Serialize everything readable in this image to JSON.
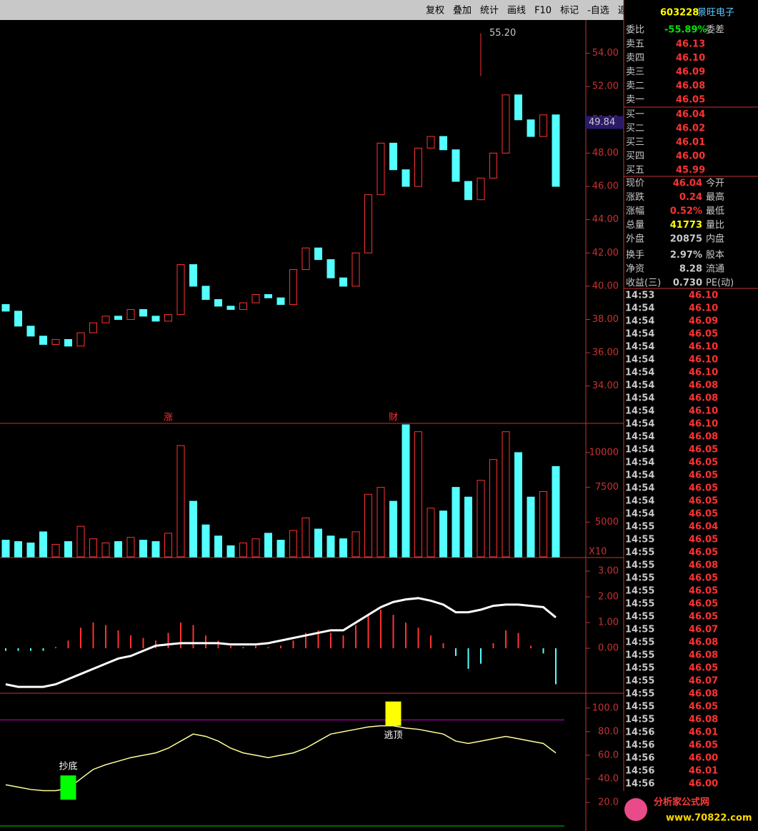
{
  "ui": {
    "toolbar": [
      "复权",
      "叠加",
      "统计",
      "画线",
      "F10",
      "标记",
      "-自选",
      "返回"
    ],
    "code": "603228",
    "name": "景旺电子",
    "weibi": {
      "label": "委比",
      "value": "-55.89%",
      "label2": "委差"
    },
    "book": [
      [
        "卖五",
        "46.13"
      ],
      [
        "卖四",
        "46.10"
      ],
      [
        "卖三",
        "46.09"
      ],
      [
        "卖二",
        "46.08"
      ],
      [
        "卖一",
        "46.05"
      ],
      [
        "买一",
        "46.04"
      ],
      [
        "买二",
        "46.02"
      ],
      [
        "买三",
        "46.01"
      ],
      [
        "买四",
        "46.00"
      ],
      [
        "买五",
        "45.99"
      ]
    ],
    "quote": [
      [
        "现价",
        "46.04",
        "今开"
      ],
      [
        "涨跌",
        "0.24",
        "最高"
      ],
      [
        "涨幅",
        "0.52%",
        "最低"
      ],
      [
        "总量",
        "41773",
        "量比"
      ],
      [
        "外盘",
        "20875",
        "内盘"
      ],
      [
        "换手",
        "2.97%",
        "股本"
      ],
      [
        "净资",
        "8.28",
        "流通"
      ],
      [
        "收益(三)",
        "0.730",
        "PE(动)"
      ]
    ],
    "trades": [
      [
        "14:53",
        "46.10"
      ],
      [
        "14:54",
        "46.10"
      ],
      [
        "14:54",
        "46.09"
      ],
      [
        "14:54",
        "46.05"
      ],
      [
        "14:54",
        "46.10"
      ],
      [
        "14:54",
        "46.10"
      ],
      [
        "14:54",
        "46.10"
      ],
      [
        "14:54",
        "46.08"
      ],
      [
        "14:54",
        "46.08"
      ],
      [
        "14:54",
        "46.10"
      ],
      [
        "14:54",
        "46.10"
      ],
      [
        "14:54",
        "46.08"
      ],
      [
        "14:54",
        "46.05"
      ],
      [
        "14:54",
        "46.05"
      ],
      [
        "14:54",
        "46.05"
      ],
      [
        "14:54",
        "46.05"
      ],
      [
        "14:54",
        "46.05"
      ],
      [
        "14:54",
        "46.05"
      ],
      [
        "14:55",
        "46.04"
      ],
      [
        "14:55",
        "46.05"
      ],
      [
        "14:55",
        "46.05"
      ],
      [
        "14:55",
        "46.08"
      ],
      [
        "14:55",
        "46.05"
      ],
      [
        "14:55",
        "46.05"
      ],
      [
        "14:55",
        "46.05"
      ],
      [
        "14:55",
        "46.05"
      ],
      [
        "14:55",
        "46.07"
      ],
      [
        "14:55",
        "46.08"
      ],
      [
        "14:55",
        "46.08"
      ],
      [
        "14:55",
        "46.05"
      ],
      [
        "14:55",
        "46.07"
      ],
      [
        "14:55",
        "46.08"
      ],
      [
        "14:55",
        "46.05"
      ],
      [
        "14:55",
        "46.08"
      ],
      [
        "14:56",
        "46.01"
      ],
      [
        "14:56",
        "46.05"
      ],
      [
        "14:56",
        "46.00"
      ],
      [
        "14:56",
        "46.01"
      ],
      [
        "14:56",
        "46.00"
      ]
    ],
    "watermark": "分析家公式网",
    "watermark_url": "www.70822.com"
  },
  "chart_data": [
    {
      "type": "candlestick",
      "open": [
        38.9,
        38.5,
        37.6,
        37.0,
        36.5,
        36.8,
        36.4,
        37.2,
        37.8,
        38.2,
        38.0,
        38.6,
        38.2,
        37.9,
        38.3,
        41.3,
        40.0,
        39.2,
        38.8,
        38.6,
        39.0,
        39.5,
        39.3,
        38.9,
        41.0,
        42.3,
        41.6,
        40.5,
        40.0,
        42.0,
        45.5,
        48.6,
        47.0,
        46.0,
        48.3,
        49.0,
        48.2,
        46.3,
        45.2,
        46.5,
        48.0,
        51.5,
        50.0,
        49.0,
        50.3
      ],
      "close": [
        38.5,
        37.6,
        37.0,
        36.5,
        36.8,
        36.4,
        37.2,
        37.8,
        38.2,
        38.0,
        38.6,
        38.2,
        37.9,
        38.3,
        41.3,
        40.0,
        39.2,
        38.8,
        38.6,
        39.0,
        39.5,
        39.3,
        38.9,
        41.0,
        42.3,
        41.6,
        40.5,
        40.0,
        42.0,
        45.5,
        48.6,
        47.0,
        46.0,
        48.3,
        49.0,
        48.2,
        46.3,
        45.2,
        46.5,
        48.0,
        51.5,
        50.0,
        49.0,
        50.3,
        46.0
      ],
      "ylim": [
        31.8,
        56.0
      ],
      "yticks": [
        {
          "value": 34,
          "label": "34.00"
        },
        {
          "value": 36,
          "label": "36.00"
        },
        {
          "value": 38,
          "label": "38.00"
        },
        {
          "value": 40,
          "label": "40.00"
        },
        {
          "value": 42,
          "label": "42.00"
        },
        {
          "value": 44,
          "label": "44.00"
        },
        {
          "value": 46,
          "label": "46.00"
        },
        {
          "value": 48,
          "label": "48.00"
        },
        {
          "value": 50,
          "label": "50.00"
        },
        {
          "value": 52,
          "label": "52.00"
        },
        {
          "value": 54,
          "label": "54.00"
        }
      ],
      "peak": {
        "value": 55.2,
        "label": "55.20",
        "index": 38
      },
      "cursor": {
        "value": 49.84,
        "label": "49.84"
      },
      "events": [
        {
          "text": "涨",
          "index": 13
        },
        {
          "text": "财",
          "index": 31
        }
      ]
    },
    {
      "type": "bar",
      "values": [
        3700,
        3600,
        3500,
        4300,
        3400,
        3600,
        4700,
        3800,
        3500,
        3600,
        3900,
        3700,
        3600,
        4200,
        10500,
        6500,
        4800,
        4000,
        3300,
        3500,
        3800,
        4200,
        3700,
        4400,
        5300,
        4500,
        4000,
        3800,
        4300,
        7000,
        7500,
        6500,
        12000,
        11500,
        6000,
        5800,
        7500,
        6800,
        8000,
        9500,
        11500,
        10000,
        6800,
        7200,
        9000
      ],
      "ylim": [
        2500,
        12050
      ],
      "yticks": [
        5000,
        7500,
        10000
      ],
      "unit": "X10"
    },
    {
      "type": "macd",
      "values": [
        -0.1,
        -0.1,
        -0.1,
        -0.1,
        0.05,
        0.3,
        0.8,
        1.0,
        0.9,
        0.7,
        0.5,
        0.4,
        0.3,
        0.6,
        1.0,
        0.9,
        0.5,
        0.3,
        0.1,
        0.05,
        0.1,
        0.05,
        0.1,
        0.3,
        0.6,
        0.7,
        0.6,
        0.5,
        0.9,
        1.3,
        1.5,
        1.3,
        1.0,
        0.8,
        0.5,
        0.2,
        -0.3,
        -0.8,
        -0.6,
        0.2,
        0.7,
        0.6,
        0.1,
        -0.2,
        -1.4
      ],
      "line": [
        -1.4,
        -1.5,
        -1.5,
        -1.5,
        -1.4,
        -1.2,
        -1.0,
        -0.8,
        -0.6,
        -0.4,
        -0.3,
        -0.1,
        0.1,
        0.15,
        0.2,
        0.2,
        0.2,
        0.2,
        0.15,
        0.15,
        0.15,
        0.2,
        0.3,
        0.4,
        0.5,
        0.6,
        0.7,
        0.7,
        1.0,
        1.3,
        1.6,
        1.8,
        1.9,
        1.95,
        1.85,
        1.7,
        1.4,
        1.4,
        1.5,
        1.65,
        1.7,
        1.7,
        1.65,
        1.6,
        1.2
      ],
      "ylim": [
        -1.72,
        3.5
      ],
      "yticks": [
        {
          "value": 0,
          "label": "0.00"
        },
        {
          "value": 1,
          "label": "1.00"
        },
        {
          "value": 2,
          "label": "2.00"
        },
        {
          "value": 3,
          "label": "3.00"
        }
      ]
    },
    {
      "type": "line",
      "values": [
        35,
        33,
        31,
        30,
        30,
        32,
        40,
        48,
        52,
        55,
        58,
        60,
        62,
        66,
        72,
        78,
        76,
        72,
        66,
        62,
        60,
        58,
        60,
        62,
        66,
        72,
        78,
        80,
        82,
        84,
        85,
        85,
        83,
        82,
        80,
        78,
        72,
        70,
        72,
        74,
        76,
        74,
        72,
        70,
        62
      ],
      "ylim": [
        -1.8,
        112
      ],
      "yticks": [
        {
          "value": 20,
          "label": "20.0"
        },
        {
          "value": 40,
          "label": "40.0"
        },
        {
          "value": 60,
          "label": "60.0"
        },
        {
          "value": 80,
          "label": "80.0"
        },
        {
          "value": 100,
          "label": "100.0"
        }
      ],
      "reference_lines": [
        90,
        0
      ],
      "signals": [
        {
          "text": "抄底",
          "index": 5,
          "color": "#00ff00"
        },
        {
          "text": "逃顶",
          "index": 31,
          "color": "#ffff00"
        }
      ]
    }
  ]
}
